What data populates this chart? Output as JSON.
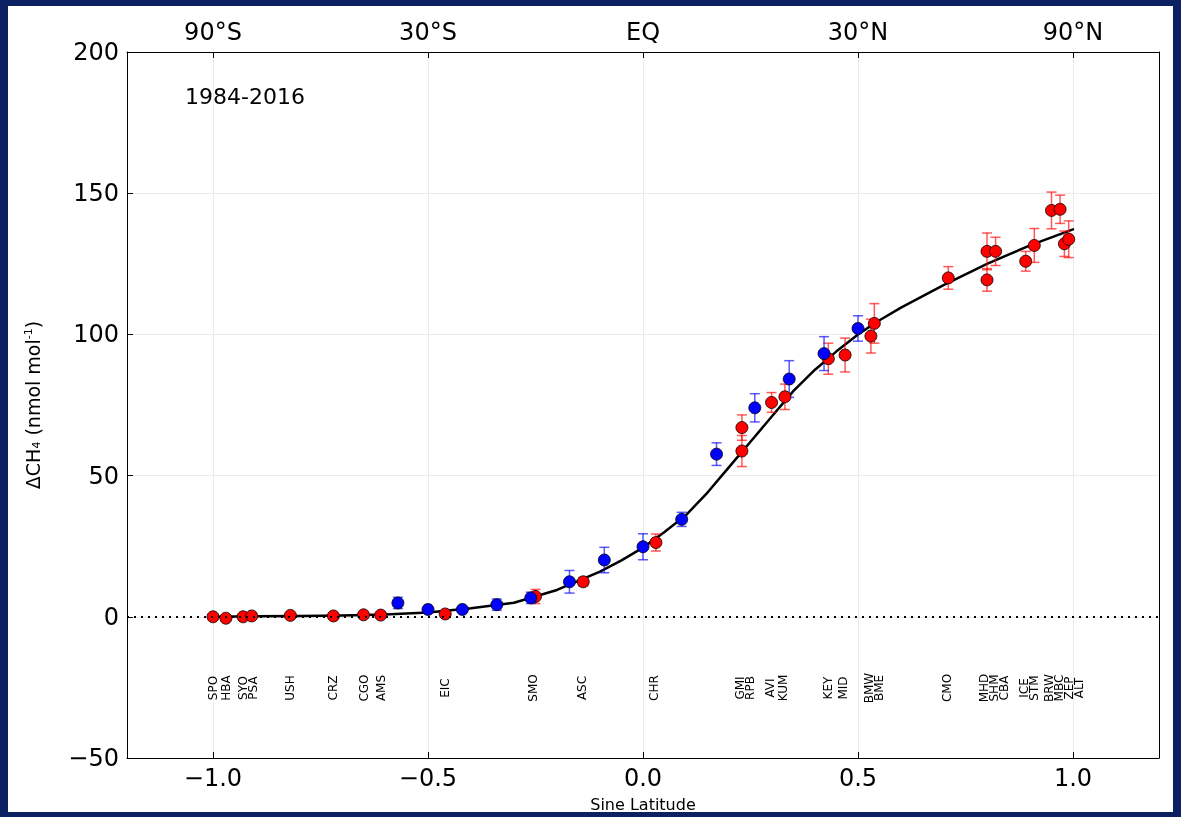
{
  "chart_data": {
    "type": "scatter",
    "xlabel": "Sine Latitude",
    "ylabel": "ΔCH$_{4}$ (nmol mol$^{-1}$)",
    "xlim": [
      -1.2,
      1.2
    ],
    "xticks": [
      {
        "value": -1,
        "label": "−1.0"
      },
      {
        "value": -0.5,
        "label": "−0.5"
      },
      {
        "value": 0,
        "label": "0.0"
      },
      {
        "value": 0.5,
        "label": "0.5"
      },
      {
        "value": 1,
        "label": "1.0"
      }
    ],
    "ylim": [
      -50,
      200
    ],
    "yticks": [
      {
        "value": -50,
        "label": "−50"
      },
      0,
      50,
      100,
      150,
      200
    ],
    "grid": true,
    "marker": "circle",
    "series": [
      {
        "color": "#ff0000",
        "x": [
          -1.0,
          -0.97,
          -0.93,
          -0.91,
          -0.82,
          -0.72,
          -0.65,
          -0.61,
          -0.46,
          -0.25,
          -0.139,
          0.03,
          0.23,
          0.23,
          0.299,
          0.33,
          0.431,
          0.47,
          0.53,
          0.538,
          0.71,
          0.8,
          0.8,
          0.82,
          0.89,
          0.91,
          0.95,
          0.97,
          0.98,
          0.99
        ],
        "values": [
          0,
          -0.5,
          0,
          0.3,
          0.5,
          0.3,
          0.7,
          0.6,
          1.0,
          7.2,
          12.4,
          26.3,
          67,
          58.7,
          75.9,
          77.9,
          91.4,
          92.7,
          99.4,
          103.9,
          120,
          129.4,
          119.3,
          129.4,
          125.9,
          131.5,
          143.9,
          144.3,
          132.1,
          133.7
        ],
        "errors": [
          null,
          null,
          null,
          null,
          null,
          null,
          null,
          null,
          null,
          2.5,
          1.5,
          3,
          4.5,
          5.5,
          3.5,
          4.5,
          5.5,
          6,
          6,
          7,
          4,
          6.5,
          4,
          5,
          3.5,
          6,
          6.5,
          5,
          4.5,
          6.5
        ]
      },
      {
        "color": "#0000ff",
        "x": [
          -0.57,
          -0.5,
          -0.42,
          -0.34,
          -0.261,
          -0.171,
          -0.09,
          0,
          0.09,
          0.171,
          0.26,
          0.34,
          0.421,
          0.5
        ],
        "values": [
          4.9,
          2.6,
          2.6,
          4.3,
          6.7,
          12.4,
          20.1,
          24.8,
          34.5,
          57.6,
          74,
          84.2,
          93.2,
          102.1
        ],
        "errors": [
          2,
          null,
          null,
          2,
          2,
          4,
          4.5,
          4.6,
          2.5,
          4,
          5,
          6.5,
          6,
          4.5
        ]
      },
      {
        "type": "line",
        "color": "#000000",
        "marker": "none",
        "x": [
          -1,
          -0.9,
          -0.8,
          -0.7,
          -0.6,
          -0.5,
          -0.4,
          -0.3,
          -0.2,
          -0.1,
          -0.05,
          0,
          0.05,
          0.1,
          0.15,
          0.2,
          0.25,
          0.3,
          0.35,
          0.4,
          0.45,
          0.5,
          0.55,
          0.6,
          0.7,
          0.8,
          0.9,
          1.0
        ],
        "values": [
          0,
          0.2,
          0.3,
          0.5,
          0.8,
          1.5,
          3,
          5,
          9.5,
          16,
          20,
          24.5,
          30,
          36,
          44,
          53,
          62,
          71,
          80,
          87.5,
          94,
          100,
          105,
          109.5,
          117.5,
          125,
          131.5,
          137.2
        ]
      }
    ],
    "ref_lines": [
      {
        "axis": "y",
        "value": 0,
        "color": "#000000",
        "line_style": "dotted"
      }
    ],
    "annotations": [
      "1984-2016",
      "90°S",
      "30°S",
      "EQ",
      "30°N",
      "90°N",
      "SPO",
      "HBA",
      "SYO",
      "PSA",
      "USH",
      "CRZ",
      "CGO",
      "AMS",
      "EIC",
      "SMO",
      "ASC",
      "CHR",
      "GMI",
      "RPB",
      "AVI",
      "KUM",
      "KEY",
      "MID",
      "BMW",
      "BME",
      "CMO",
      "MHD",
      "SHM",
      "CBA",
      "ICE",
      "STM",
      "BRW",
      "MBC",
      "ZEP",
      "ALT"
    ]
  }
}
